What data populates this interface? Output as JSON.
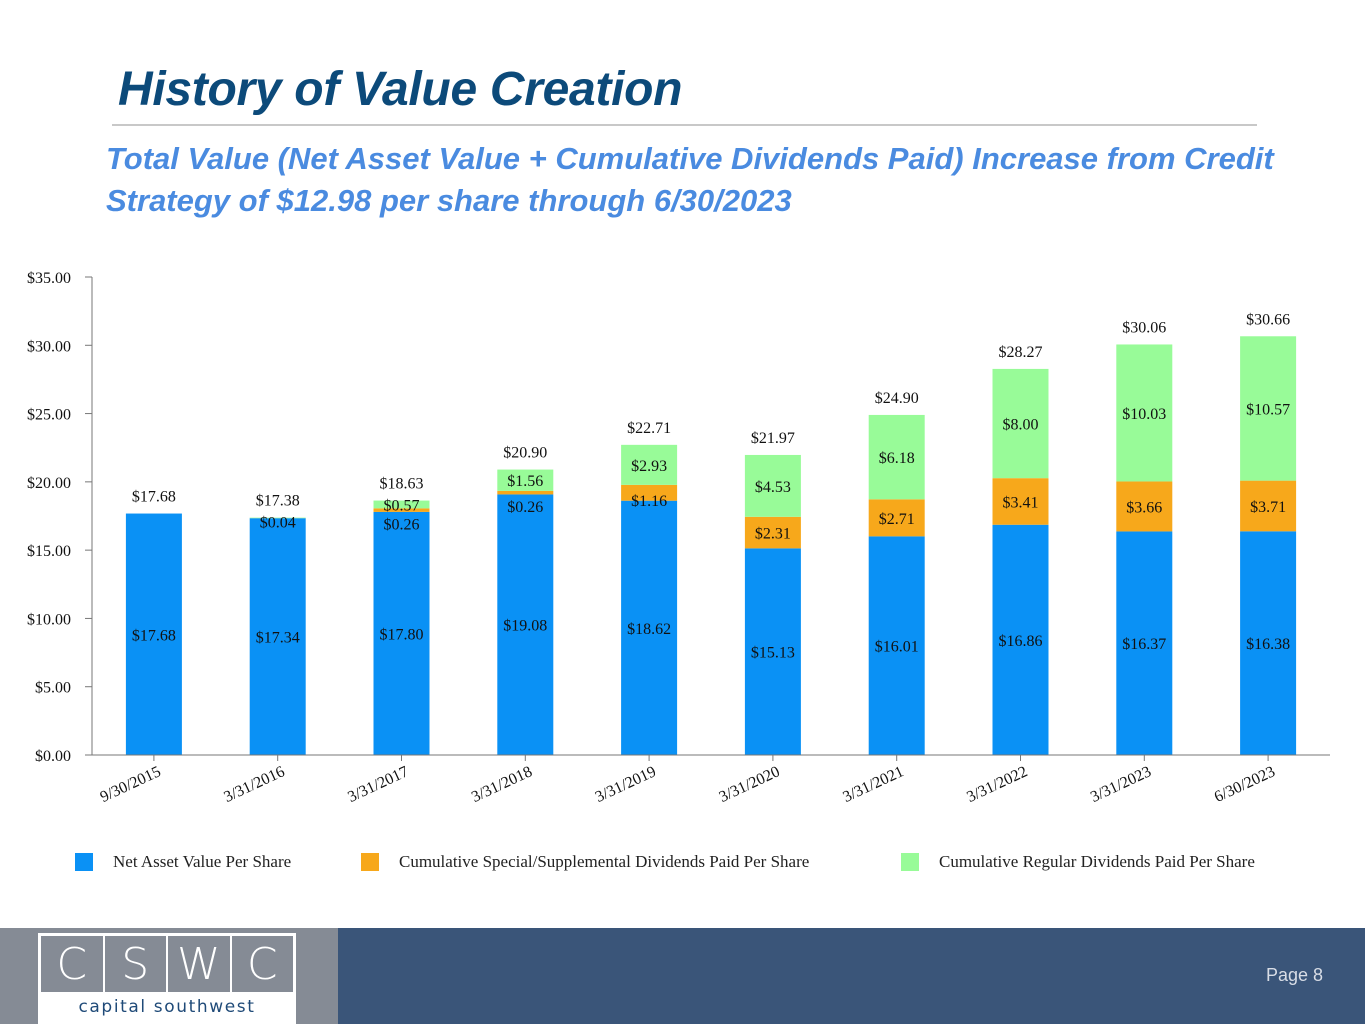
{
  "header": {
    "title": "History of Value Creation",
    "subtitle": "Total Value (Net Asset Value + Cumulative Dividends Paid) Increase from Credit Strategy of $12.98 per share through 6/30/2023"
  },
  "chart_data": {
    "type": "bar",
    "stacked": true,
    "categories": [
      "9/30/2015",
      "3/31/2016",
      "3/31/2017",
      "3/31/2018",
      "3/31/2019",
      "3/31/2020",
      "3/31/2021",
      "3/31/2022",
      "3/31/2023",
      "6/30/2023"
    ],
    "series": [
      {
        "name": "Net Asset Value Per Share",
        "color": "#0a91f5",
        "values": [
          17.68,
          17.34,
          17.8,
          19.08,
          18.62,
          15.13,
          16.01,
          16.86,
          16.37,
          16.38
        ]
      },
      {
        "name": "Cumulative Special/Supplemental Dividends Paid Per Share",
        "color": "#f7a81b",
        "values": [
          0,
          0,
          0.26,
          0.26,
          1.16,
          2.31,
          2.71,
          3.41,
          3.66,
          3.71
        ]
      },
      {
        "name": "Cumulative Regular Dividends Paid Per Share",
        "color": "#98fb98",
        "values": [
          0,
          0.04,
          0.57,
          1.56,
          2.93,
          4.53,
          6.18,
          8.0,
          10.03,
          10.57
        ]
      }
    ],
    "totals": [
      17.68,
      17.38,
      18.63,
      20.9,
      22.71,
      21.97,
      24.9,
      28.27,
      30.06,
      30.66
    ],
    "yticks": [
      "$0.00",
      "$5.00",
      "$10.00",
      "$15.00",
      "$20.00",
      "$25.00",
      "$30.00",
      "$35.00"
    ],
    "ylim": [
      0,
      35
    ],
    "grid": false,
    "legend_position": "bottom"
  },
  "legend": {
    "items": [
      {
        "label": "Net Asset Value Per Share",
        "color": "#0a91f5"
      },
      {
        "label": "Cumulative Special/Supplemental Dividends Paid Per Share",
        "color": "#f7a81b"
      },
      {
        "label": "Cumulative Regular Dividends Paid Per Share",
        "color": "#98fb98"
      }
    ]
  },
  "footer": {
    "logo_letters": [
      "C",
      "S",
      "W",
      "C"
    ],
    "logo_sub": "capital southwest",
    "page": "Page 8"
  }
}
